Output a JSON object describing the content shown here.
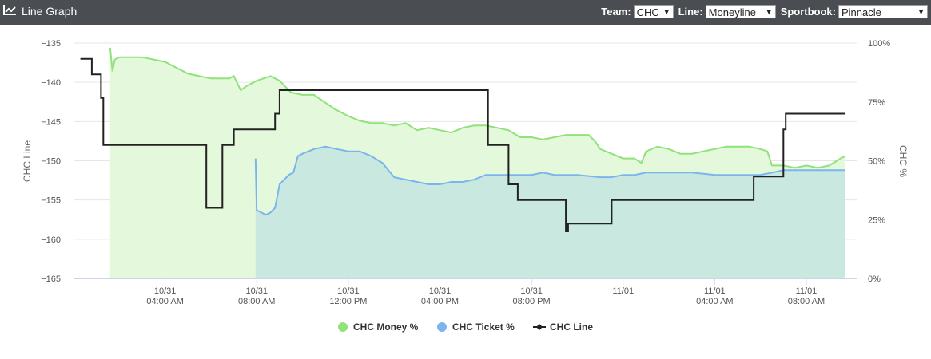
{
  "header": {
    "title": "Line Graph",
    "team_label": "Team:",
    "team_value": "CHC",
    "line_label": "Line:",
    "line_value": "Moneyline",
    "sportsbook_label": "Sportbook:",
    "sportsbook_value": "Pinnacle"
  },
  "colors": {
    "header_bg": "#4a4d52",
    "money": "#90e27a",
    "money_fill": "#e4f8dc",
    "ticket": "#7cb5ec",
    "ticket_fill": "#c9e9e0",
    "line": "#222222"
  },
  "chart_data": {
    "type": "line",
    "ylabel_left": "CHC Line",
    "ylabel_right": "CHC %",
    "ylim_left": [
      -165,
      -135
    ],
    "yticks_left": [
      -135,
      -140,
      -145,
      -150,
      -155,
      -160,
      -165
    ],
    "ylim_right": [
      0,
      100
    ],
    "yticks_right": [
      "100%",
      "75%",
      "50%",
      "25%",
      "0%"
    ],
    "xticks": [
      {
        "t": 4,
        "date": "10/31",
        "time": "04:00 AM"
      },
      {
        "t": 8,
        "date": "10/31",
        "time": "08:00 AM"
      },
      {
        "t": 12,
        "date": "10/31",
        "time": "12:00 PM"
      },
      {
        "t": 16,
        "date": "10/31",
        "time": "04:00 PM"
      },
      {
        "t": 20,
        "date": "10/31",
        "time": "08:00 PM"
      },
      {
        "t": 24,
        "date": "11/01",
        "time": ""
      },
      {
        "t": 28,
        "date": "11/01",
        "time": "04:00 AM"
      },
      {
        "t": 32,
        "date": "11/01",
        "time": "08:00 AM"
      }
    ],
    "xlim": [
      0,
      34.2
    ],
    "legend_position": "bottom",
    "series": [
      {
        "name": "CHC Money %",
        "axis": "right",
        "points": [
          [
            1.6,
            98
          ],
          [
            1.7,
            88
          ],
          [
            1.8,
            93
          ],
          [
            2.0,
            94
          ],
          [
            3.0,
            94
          ],
          [
            4.0,
            92
          ],
          [
            5.0,
            87
          ],
          [
            6.0,
            85
          ],
          [
            6.8,
            85
          ],
          [
            7.0,
            86
          ],
          [
            7.3,
            80
          ],
          [
            7.6,
            82
          ],
          [
            8.0,
            84
          ],
          [
            8.6,
            86
          ],
          [
            9.0,
            84
          ],
          [
            9.5,
            79
          ],
          [
            10.0,
            78
          ],
          [
            10.5,
            78
          ],
          [
            10.8,
            76
          ],
          [
            11.4,
            72
          ],
          [
            12.0,
            69
          ],
          [
            12.5,
            67
          ],
          [
            13.0,
            66
          ],
          [
            13.5,
            66
          ],
          [
            14.0,
            65
          ],
          [
            14.5,
            66
          ],
          [
            15.0,
            63
          ],
          [
            15.5,
            64
          ],
          [
            16.0,
            63
          ],
          [
            16.5,
            62
          ],
          [
            17.0,
            64
          ],
          [
            17.5,
            65
          ],
          [
            18.0,
            65
          ],
          [
            18.5,
            64
          ],
          [
            19.0,
            63
          ],
          [
            19.5,
            60
          ],
          [
            20.0,
            60
          ],
          [
            20.5,
            59
          ],
          [
            21.0,
            60
          ],
          [
            21.5,
            61
          ],
          [
            22.0,
            61
          ],
          [
            22.5,
            61
          ],
          [
            22.8,
            58
          ],
          [
            23.0,
            55
          ],
          [
            23.5,
            53
          ],
          [
            24.0,
            51
          ],
          [
            24.5,
            51
          ],
          [
            24.8,
            49
          ],
          [
            25.0,
            54
          ],
          [
            25.5,
            56
          ],
          [
            26.0,
            55
          ],
          [
            26.5,
            53
          ],
          [
            27.0,
            53
          ],
          [
            27.5,
            54
          ],
          [
            28.0,
            55
          ],
          [
            28.5,
            56
          ],
          [
            29.0,
            56
          ],
          [
            29.5,
            56
          ],
          [
            30.0,
            55
          ],
          [
            30.3,
            54
          ],
          [
            30.5,
            48
          ],
          [
            31.0,
            48
          ],
          [
            31.5,
            47
          ],
          [
            32.0,
            48
          ],
          [
            32.5,
            47
          ],
          [
            33.0,
            48
          ],
          [
            33.5,
            51
          ],
          [
            33.7,
            52
          ]
        ]
      },
      {
        "name": "CHC Ticket %",
        "axis": "right",
        "points": [
          [
            7.95,
            51
          ],
          [
            8.0,
            29
          ],
          [
            8.2,
            28
          ],
          [
            8.4,
            27
          ],
          [
            8.6,
            28
          ],
          [
            8.8,
            30
          ],
          [
            9.0,
            40
          ],
          [
            9.4,
            44
          ],
          [
            9.6,
            45
          ],
          [
            9.8,
            52
          ],
          [
            10.0,
            53
          ],
          [
            10.5,
            55
          ],
          [
            11.0,
            56
          ],
          [
            11.5,
            55
          ],
          [
            12.0,
            54
          ],
          [
            12.5,
            54
          ],
          [
            13.0,
            52
          ],
          [
            13.5,
            49
          ],
          [
            14.0,
            43
          ],
          [
            14.5,
            42
          ],
          [
            15.0,
            41
          ],
          [
            15.5,
            40
          ],
          [
            16.0,
            40
          ],
          [
            16.5,
            41
          ],
          [
            17.0,
            41
          ],
          [
            17.5,
            42
          ],
          [
            18.0,
            44
          ],
          [
            18.5,
            44
          ],
          [
            19.0,
            44
          ],
          [
            19.5,
            44
          ],
          [
            20.0,
            44
          ],
          [
            20.5,
            45
          ],
          [
            21.0,
            44
          ],
          [
            21.5,
            44
          ],
          [
            22.0,
            44
          ],
          [
            23.0,
            43
          ],
          [
            23.5,
            43
          ],
          [
            24.0,
            44
          ],
          [
            24.5,
            44
          ],
          [
            25.0,
            45
          ],
          [
            26.0,
            45
          ],
          [
            27.0,
            45
          ],
          [
            28.0,
            44
          ],
          [
            29.0,
            44
          ],
          [
            30.0,
            44
          ],
          [
            30.5,
            45
          ],
          [
            31.0,
            46
          ],
          [
            32.0,
            46
          ],
          [
            32.5,
            46
          ],
          [
            33.0,
            46
          ],
          [
            33.7,
            46
          ]
        ]
      },
      {
        "name": "CHC Line",
        "axis": "left",
        "step": true,
        "points": [
          [
            0.3,
            -137
          ],
          [
            0.8,
            -139
          ],
          [
            1.2,
            -142
          ],
          [
            1.3,
            -148
          ],
          [
            5.7,
            -148
          ],
          [
            5.8,
            -156
          ],
          [
            6.4,
            -156
          ],
          [
            6.5,
            -148
          ],
          [
            6.9,
            -148
          ],
          [
            7.0,
            -146
          ],
          [
            8.7,
            -146
          ],
          [
            8.8,
            -144
          ],
          [
            9.0,
            -141
          ],
          [
            18.0,
            -141
          ],
          [
            18.1,
            -148
          ],
          [
            18.9,
            -148
          ],
          [
            19.0,
            -153
          ],
          [
            19.3,
            -153
          ],
          [
            19.4,
            -155
          ],
          [
            21.4,
            -155
          ],
          [
            21.5,
            -159
          ],
          [
            21.6,
            -158
          ],
          [
            23.4,
            -158
          ],
          [
            23.5,
            -155
          ],
          [
            29.6,
            -155
          ],
          [
            29.7,
            -152
          ],
          [
            30.9,
            -152
          ],
          [
            31.0,
            -146
          ],
          [
            31.1,
            -144
          ],
          [
            33.7,
            -144
          ]
        ]
      }
    ]
  }
}
